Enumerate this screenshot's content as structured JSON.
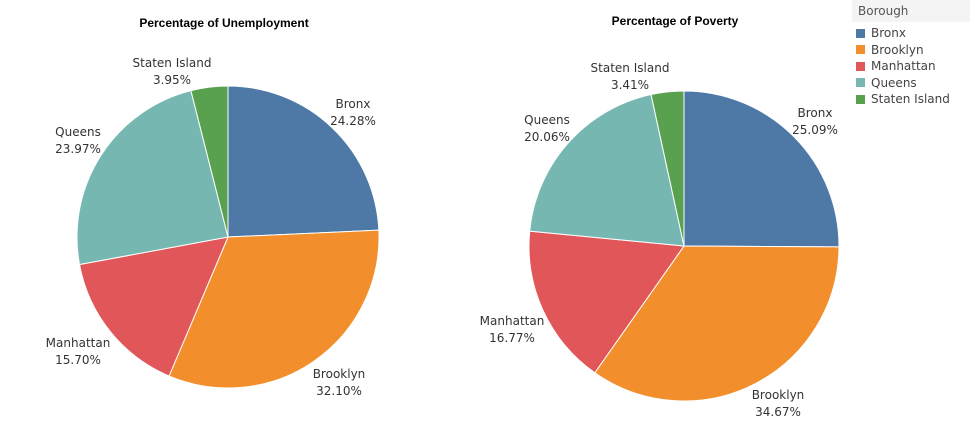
{
  "chart_data": [
    {
      "type": "pie",
      "title": "Percentage of Unemployment",
      "categories": [
        "Bronx",
        "Brooklyn",
        "Manhattan",
        "Queens",
        "Staten Island"
      ],
      "values": [
        24.28,
        32.1,
        15.7,
        23.97,
        3.95
      ],
      "value_labels": [
        "24.28%",
        "32.10%",
        "15.70%",
        "23.97%",
        "3.95%"
      ]
    },
    {
      "type": "pie",
      "title": "Percentage of Poverty",
      "categories": [
        "Bronx",
        "Brooklyn",
        "Manhattan",
        "Queens",
        "Staten Island"
      ],
      "values": [
        25.09,
        34.67,
        16.77,
        20.06,
        3.41
      ],
      "value_labels": [
        "25.09%",
        "34.67%",
        "16.77%",
        "20.06%",
        "3.41%"
      ]
    }
  ],
  "legend": {
    "title": "Borough",
    "placement": "top-right",
    "items": [
      {
        "label": "Bronx",
        "color": "#4e79a7"
      },
      {
        "label": "Brooklyn",
        "color": "#f28e2b"
      },
      {
        "label": "Manhattan",
        "color": "#e15759"
      },
      {
        "label": "Queens",
        "color": "#76b7b2"
      },
      {
        "label": "Staten Island",
        "color": "#59a14f"
      }
    ]
  }
}
